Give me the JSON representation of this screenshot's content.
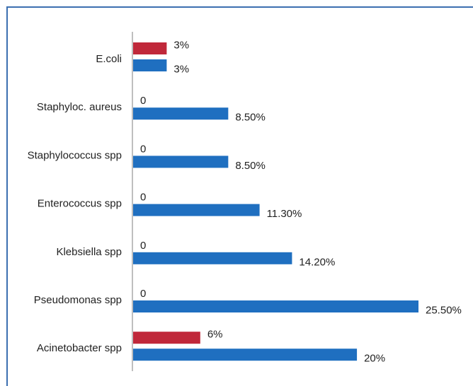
{
  "chart_data": {
    "type": "bar",
    "orientation": "horizontal",
    "categories": [
      "E.coli",
      "Staphyloc. aureus",
      "Staphylococcus spp",
      "Enterococcus spp",
      "Klebsiella spp",
      "Pseudomonas spp",
      "Acinetobacter spp"
    ],
    "series": [
      {
        "color": "#c0283a",
        "values": [
          3,
          0,
          0,
          0,
          0,
          0,
          6
        ],
        "value_labels": [
          "3%",
          "0",
          "0",
          "0",
          "0",
          "0",
          "6%"
        ]
      },
      {
        "color": "#1f6fc0",
        "values": [
          3,
          8.5,
          8.5,
          11.3,
          14.2,
          25.5,
          20
        ],
        "value_labels": [
          "3%",
          "8.50%",
          "8.50%",
          "11.30%",
          "14.20%",
          "25.50%",
          "20%"
        ]
      }
    ]
  }
}
